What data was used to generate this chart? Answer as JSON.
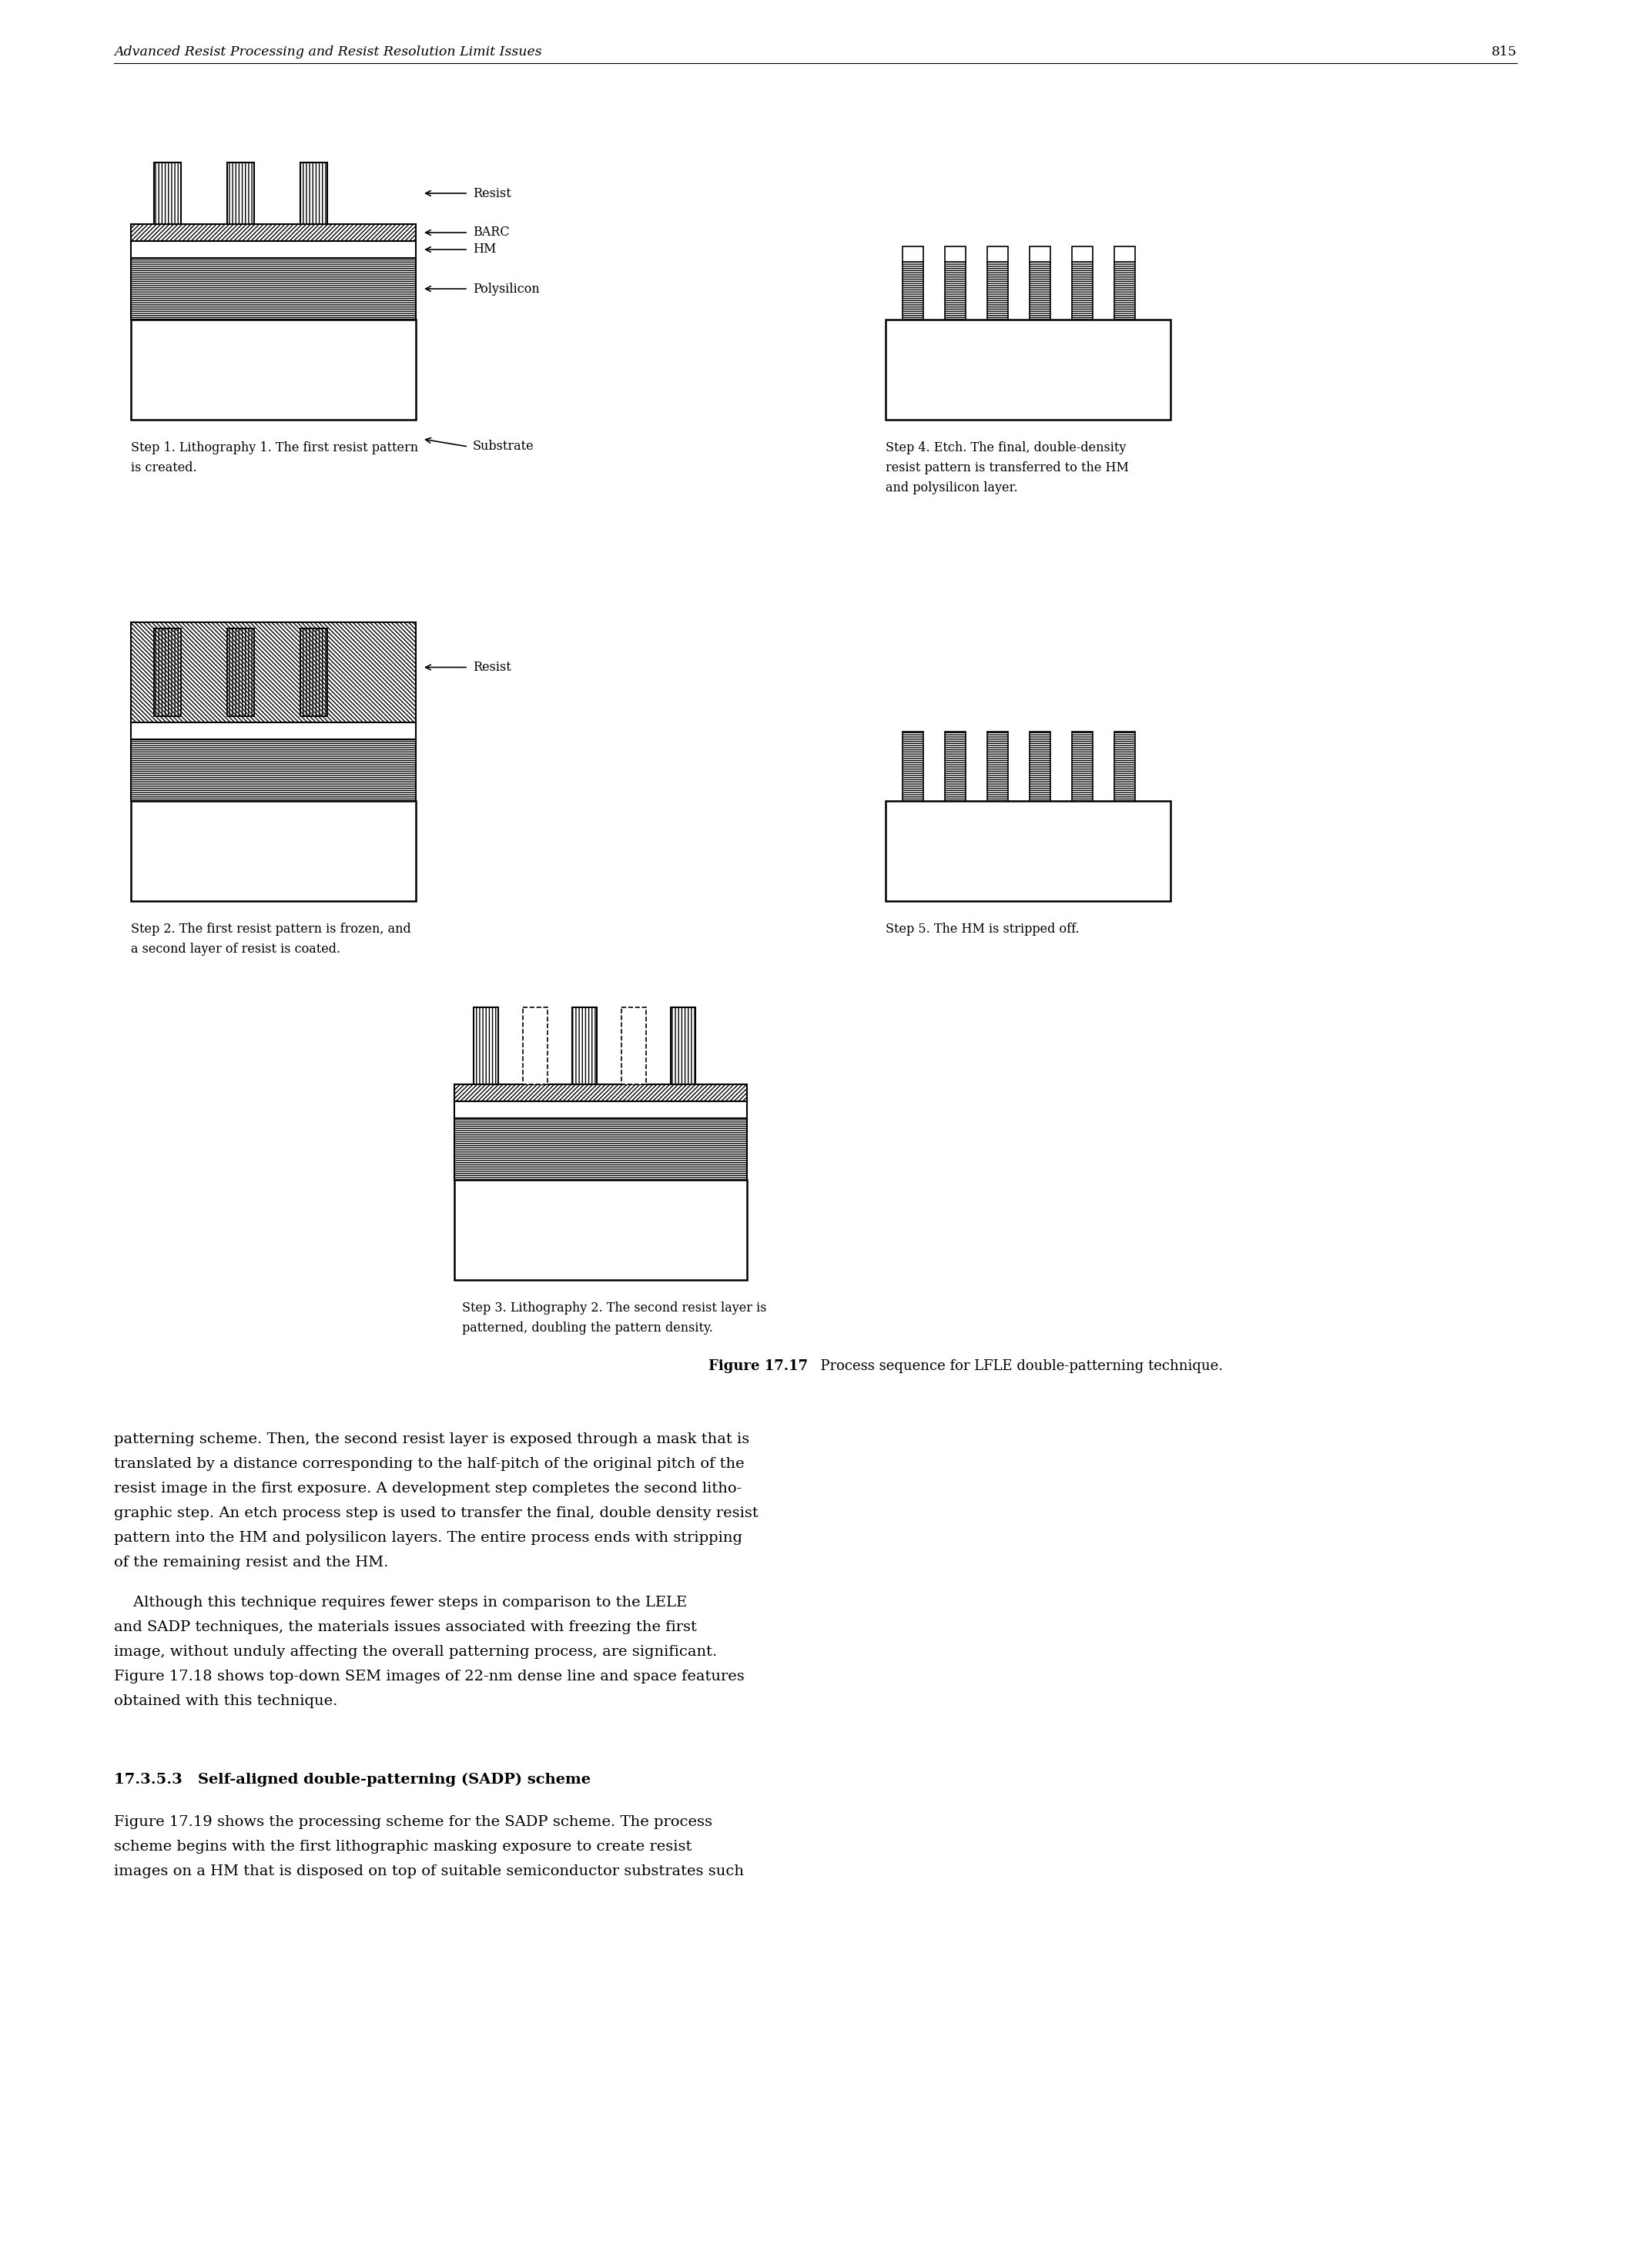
{
  "header_text": "Advanced Resist Processing and Resist Resolution Limit Issues",
  "page_number": "815",
  "figure_bold": "Figure 17.17",
  "figure_caption": "  Process sequence for LFLE double-patterning technique.",
  "step1_caption_line1": "Step 1. Lithography 1. The first resist pattern",
  "step1_caption_line2": "is created.",
  "step2_caption_line1": "Step 2. The first resist pattern is frozen, and",
  "step2_caption_line2": "a second layer of resist is coated.",
  "step3_caption_line1": "Step 3. Lithography 2. The second resist layer is",
  "step3_caption_line2": "patterned, doubling the pattern density.",
  "step4_caption_line1": "Step 4. Etch. The final, double-density",
  "step4_caption_line2": "resist pattern is transferred to the HM",
  "step4_caption_line3": "and polysilicon layer.",
  "step5_caption": "Step 5. The HM is stripped off.",
  "labels_step1": [
    "Resist",
    "BARC",
    "HM",
    "Polysilicon",
    "Substrate"
  ],
  "label_step2": "Resist",
  "body_para1": [
    "patterning scheme. Then, the second resist layer is exposed through a mask that is",
    "translated by a distance corresponding to the half-pitch of the original pitch of the",
    "resist image in the first exposure. A development step completes the second litho-",
    "graphic step. An etch process step is used to transfer the final, double density resist",
    "pattern into the HM and polysilicon layers. The entire process ends with stripping",
    "of the remaining resist and the HM."
  ],
  "body_para2": [
    "    Although this technique requires fewer steps in comparison to the LELE",
    "and SADP techniques, the materials issues associated with freezing the first",
    "image, without unduly affecting the overall patterning process, are significant.",
    "Figure 17.18 shows top-down SEM images of 22-nm dense line and space features",
    "obtained with this technique."
  ],
  "section_title": "17.3.5.3   Self-aligned double-patterning (SADP) scheme",
  "section_body": [
    "Figure 17.19 shows the processing scheme for the SADP scheme. The process",
    "scheme begins with the first lithographic masking exposure to create resist",
    "images on a HM that is disposed on top of suitable semiconductor substrates such"
  ],
  "bg_color": "#ffffff"
}
